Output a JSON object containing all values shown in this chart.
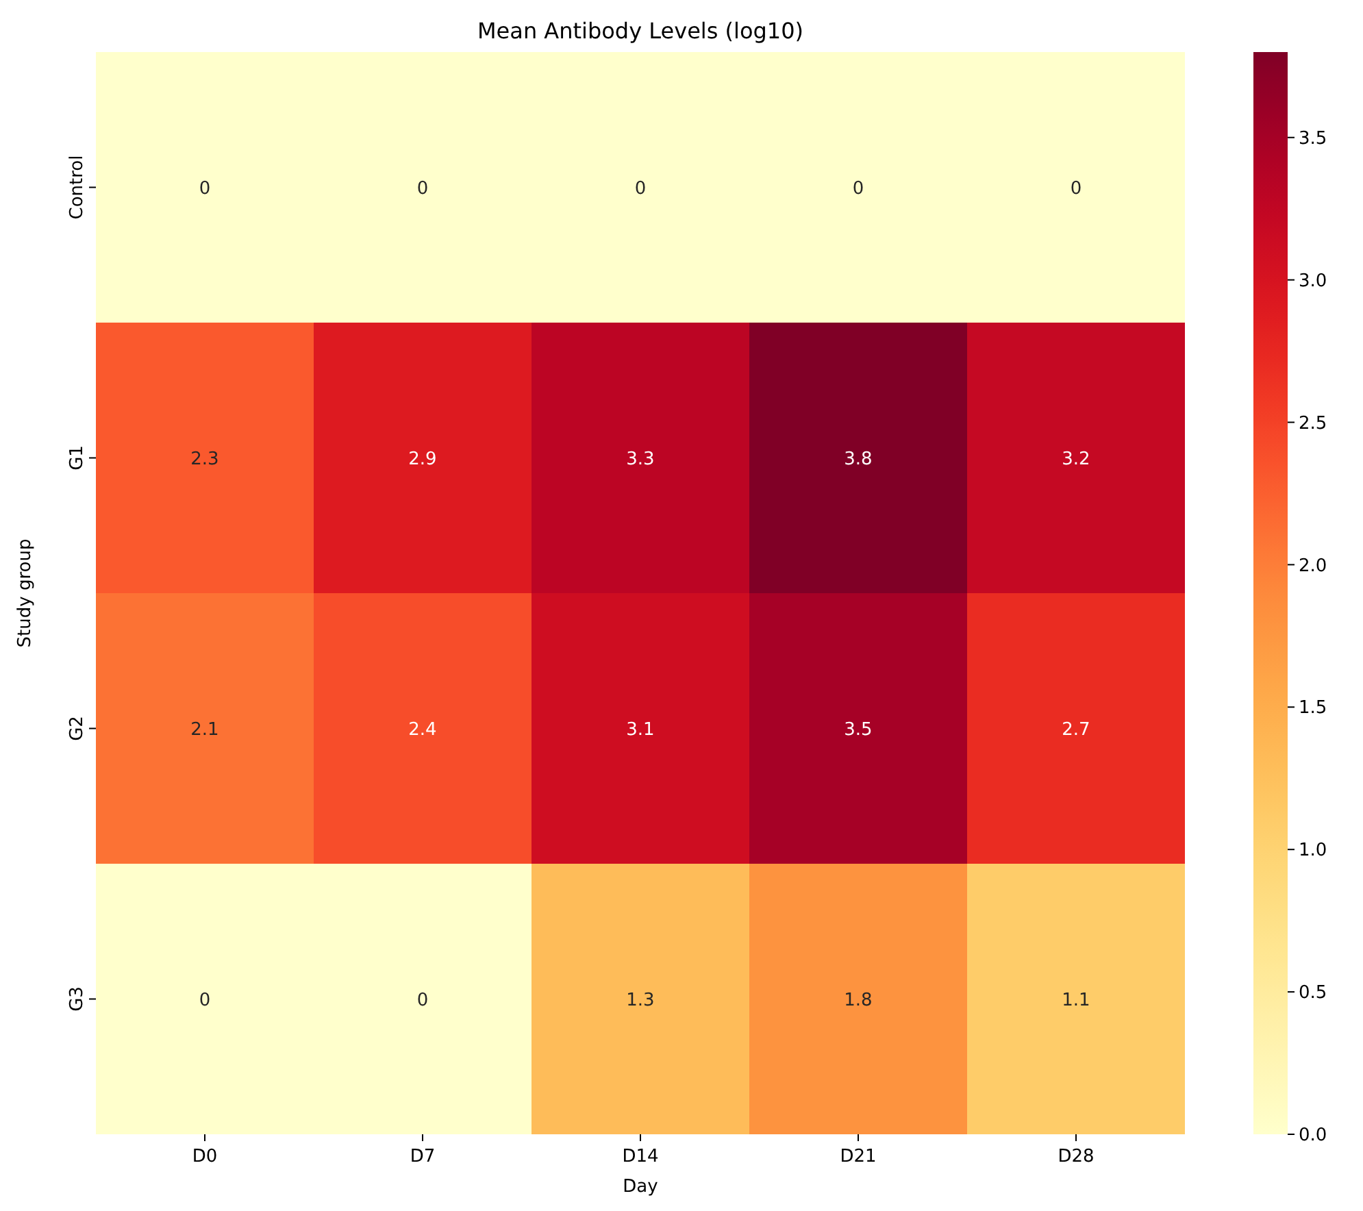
{
  "chart_data": {
    "type": "heatmap",
    "title": "Mean Antibody Levels (log10)",
    "xlabel": "Day",
    "ylabel": "Study group",
    "categories": [
      "D0",
      "D7",
      "D14",
      "D21",
      "D28"
    ],
    "y_categories": [
      "Control",
      "G1",
      "G2",
      "G3"
    ],
    "cells": [
      [
        0,
        0,
        0,
        0,
        0
      ],
      [
        2.3,
        2.9,
        3.3,
        3.8,
        3.2
      ],
      [
        2.1,
        2.4,
        3.1,
        3.5,
        2.7
      ],
      [
        0,
        0,
        1.3,
        1.8,
        1.1
      ]
    ],
    "data_labels": true,
    "clim": [
      0,
      3.8
    ],
    "cticks": [
      {
        "value": 0,
        "label": "0.0"
      },
      {
        "value": 0.5,
        "label": "0.5"
      },
      {
        "value": 1,
        "label": "1.0"
      },
      {
        "value": 1.5,
        "label": "1.5"
      },
      {
        "value": 2,
        "label": "2.0"
      },
      {
        "value": 2.5,
        "label": "2.5"
      },
      {
        "value": 3,
        "label": "3.0"
      },
      {
        "value": 3.5,
        "label": "3.5"
      }
    ]
  }
}
